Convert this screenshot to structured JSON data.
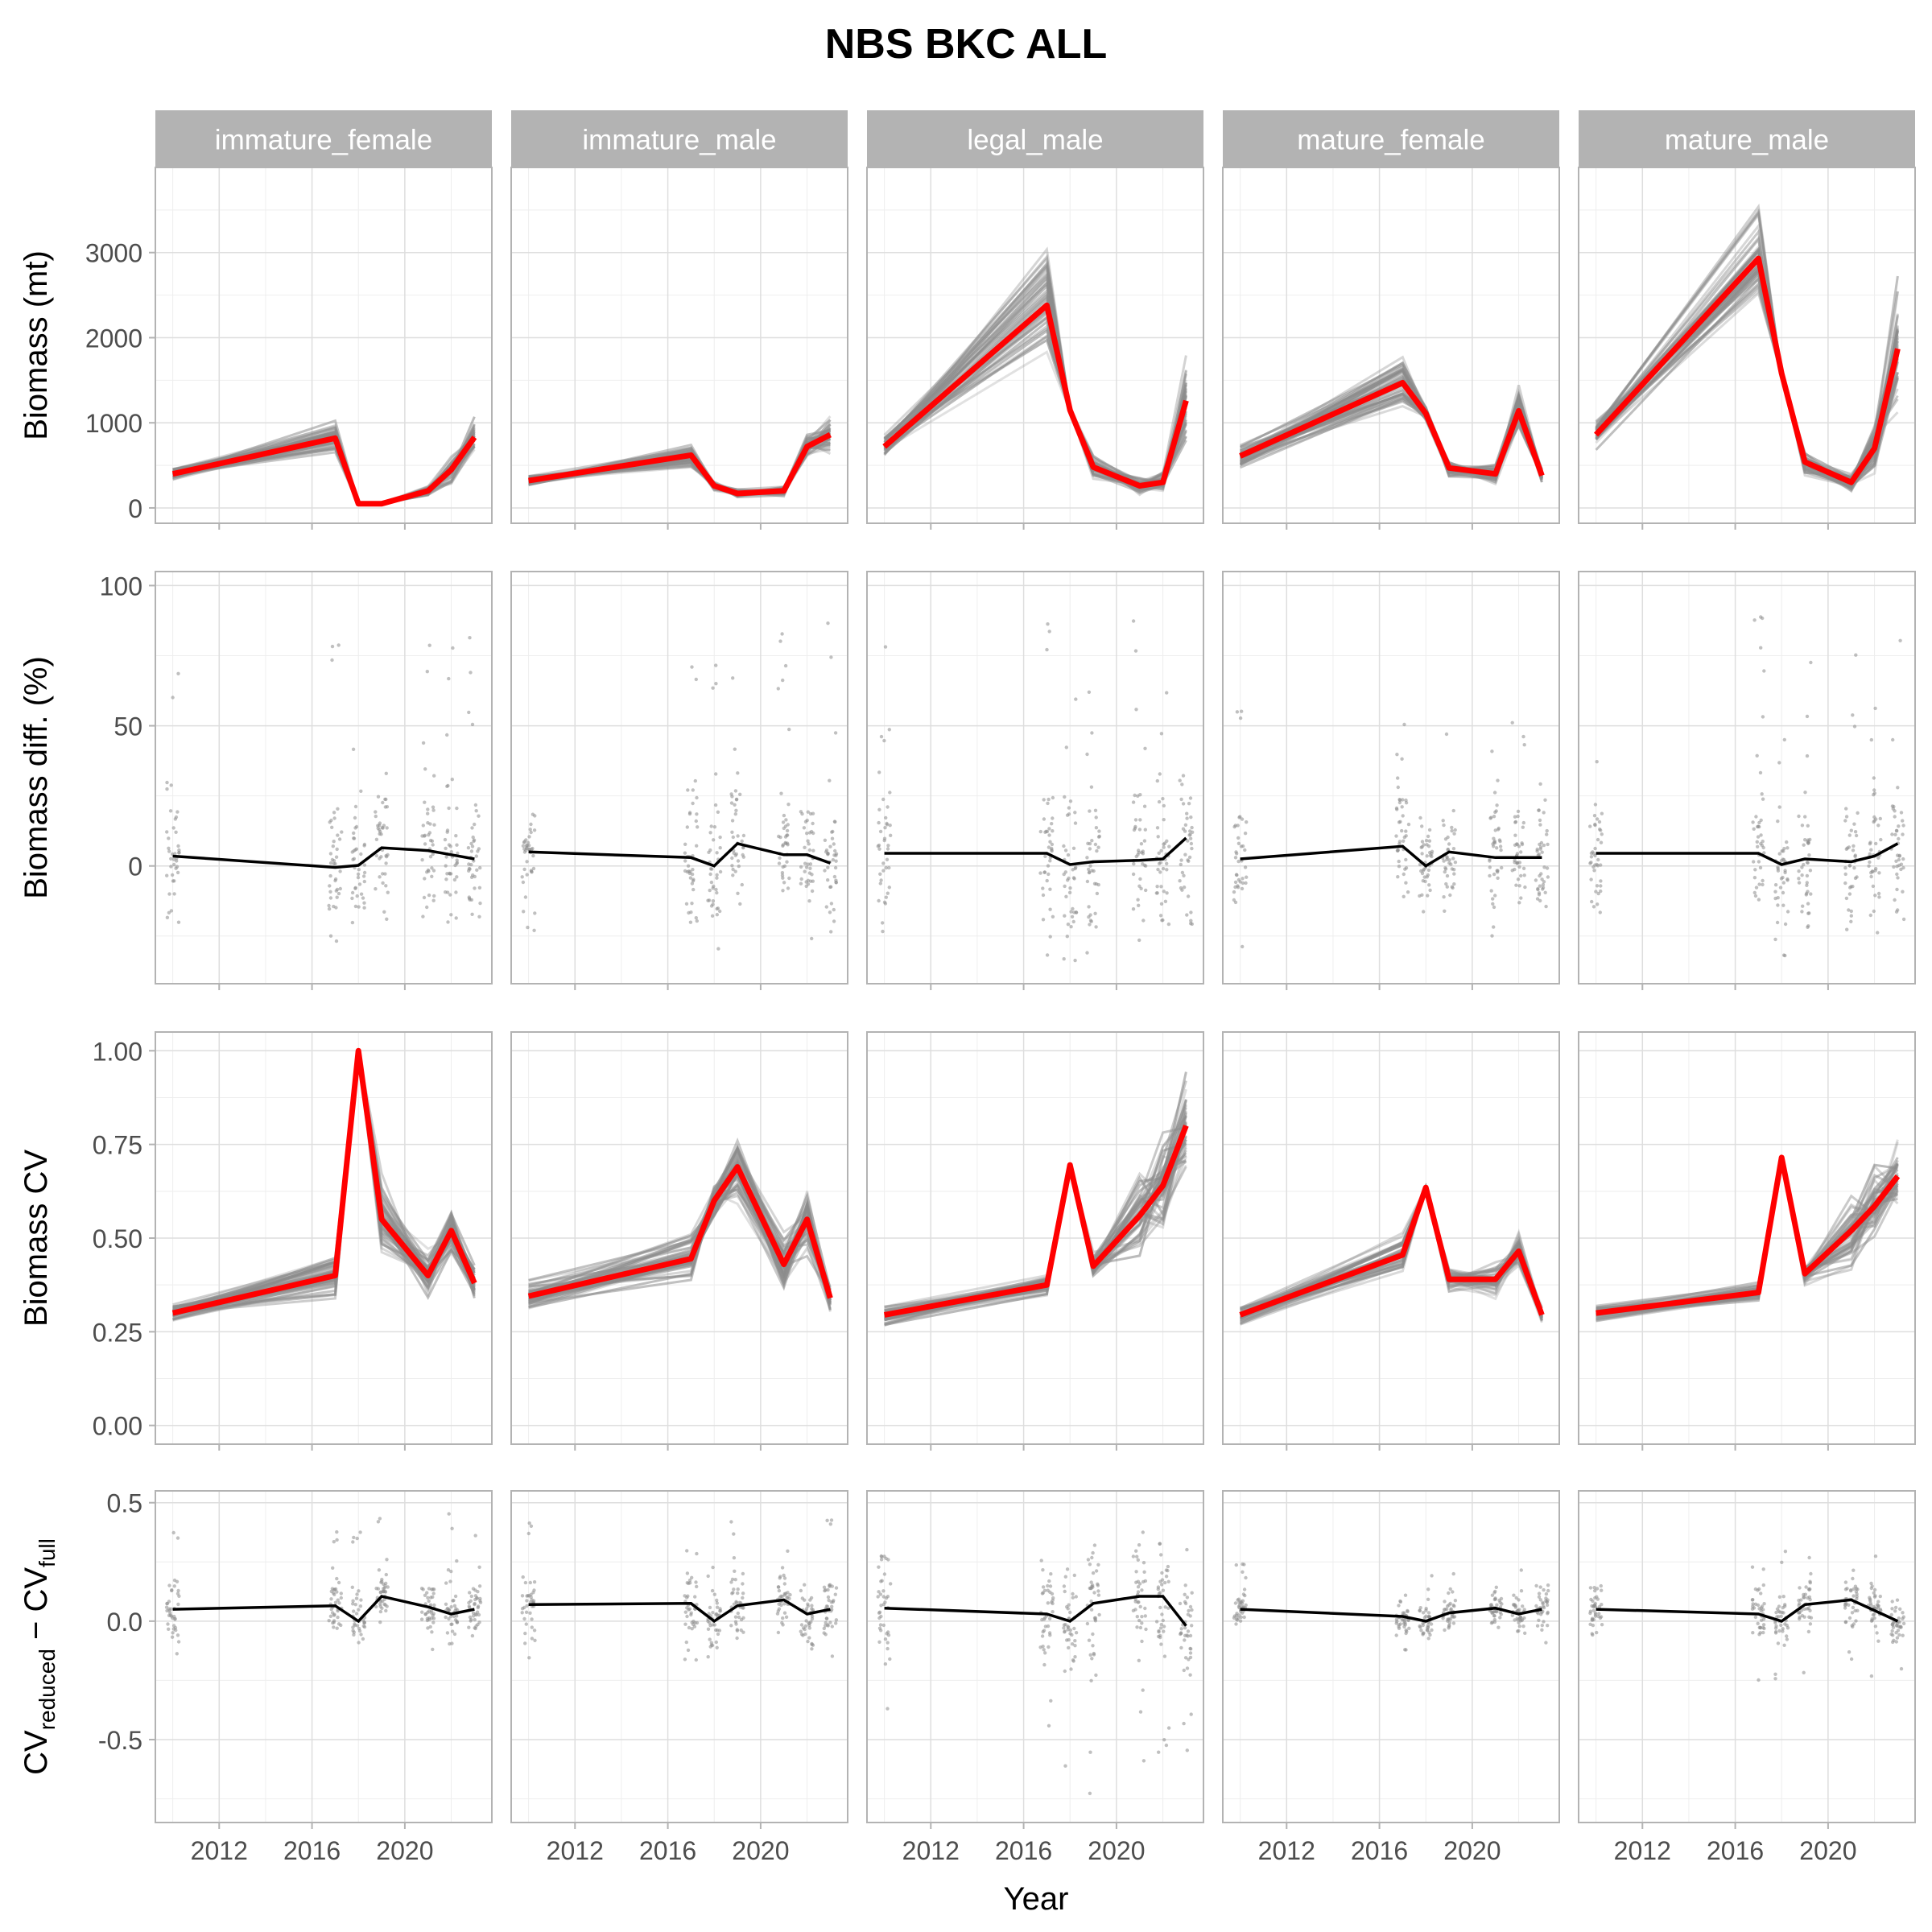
{
  "title": "NBS BKC ALL",
  "xlabel": "Year",
  "colors": {
    "strip_bg": "#B3B3B3",
    "strip_text": "#FFFFFF",
    "panel_border": "#B3B3B3",
    "grid_major": "#DEDEDE",
    "grid_minor": "#EEEEEE",
    "replicate": "#8C8C8C",
    "full_series": "#FF0000",
    "mean_line": "#000000",
    "text": "#000000",
    "tick_text": "#4D4D4D"
  },
  "chart_data": {
    "type": "line",
    "layout": "facet-grid",
    "facets": [
      "immature_female",
      "immature_male",
      "legal_male",
      "mature_female",
      "mature_male"
    ],
    "years": [
      2010,
      2017,
      2018,
      2019,
      2021,
      2022,
      2023
    ],
    "x_ticks": [
      2012,
      2016,
      2020
    ],
    "xlim": [
      2009.25,
      2023.75
    ],
    "grid": true,
    "rows": [
      {
        "key": "biomass",
        "ylabel": "Biomass (mt)",
        "ylim": [
          -180,
          4000
        ],
        "y_ticks": [
          0,
          1000,
          2000,
          3000
        ],
        "y_tick_labels": [
          "0",
          "1000",
          "2000",
          "3000"
        ],
        "marks": "lines",
        "series": [
          {
            "facet": "immature_female",
            "full": [
              400,
              820,
              50,
              50,
              200,
              450,
              830
            ],
            "replicate_spread": [
              0.28,
              0.32,
              0.25,
              0.3,
              0.4,
              0.5,
              0.35
            ]
          },
          {
            "facet": "immature_male",
            "full": [
              320,
              620,
              260,
              170,
              200,
              720,
              860
            ],
            "replicate_spread": [
              0.28,
              0.32,
              0.25,
              0.35,
              0.4,
              0.3,
              0.3
            ]
          },
          {
            "facet": "legal_male",
            "full": [
              720,
              2380,
              1150,
              480,
              260,
              300,
              1260
            ],
            "replicate_spread": [
              0.28,
              0.32,
              0.05,
              0.4,
              0.5,
              0.5,
              0.6
            ]
          },
          {
            "facet": "mature_female",
            "full": [
              610,
              1470,
              1110,
              470,
              400,
              1140,
              380
            ],
            "replicate_spread": [
              0.28,
              0.3,
              0.1,
              0.3,
              0.4,
              0.35,
              0.3
            ]
          },
          {
            "facet": "mature_male",
            "full": [
              860,
              2930,
              1580,
              540,
              300,
              700,
              1870
            ],
            "replicate_spread": [
              0.28,
              0.3,
              0.05,
              0.35,
              0.45,
              0.5,
              0.55
            ]
          }
        ]
      },
      {
        "key": "biomass_diff",
        "ylabel": "Biomass diff. (%)",
        "ylim": [
          -42,
          105
        ],
        "y_ticks": [
          0,
          50,
          100
        ],
        "y_tick_labels": [
          "0",
          "50",
          "100"
        ],
        "marks": "points+mean",
        "series": [
          {
            "facet": "immature_female",
            "mean": [
              3.5,
              -0.5,
              0.2,
              6.5,
              5.5,
              4,
              2.5
            ],
            "point_range": [
              -32,
              85
            ]
          },
          {
            "facet": "immature_male",
            "mean": [
              5,
              3,
              0,
              8,
              4,
              4,
              1
            ],
            "point_range": [
              -32,
              88
            ]
          },
          {
            "facet": "legal_male",
            "mean": [
              4.5,
              4.5,
              0.5,
              1.5,
              2,
              2.5,
              10
            ],
            "point_range": [
              -35,
              100
            ]
          },
          {
            "facet": "mature_female",
            "mean": [
              2.5,
              7,
              0,
              5,
              3,
              3,
              3
            ],
            "point_range": [
              -32,
              63
            ]
          },
          {
            "facet": "mature_male",
            "mean": [
              4.5,
              4.5,
              0.5,
              2.5,
              1.5,
              3.5,
              8
            ],
            "point_range": [
              -35,
              92
            ]
          }
        ]
      },
      {
        "key": "biomass_cv",
        "ylabel": "Biomass CV",
        "ylim": [
          -0.05,
          1.05
        ],
        "y_ticks": [
          0,
          0.25,
          0.5,
          0.75,
          1
        ],
        "y_tick_labels": [
          "0.00",
          "0.25",
          "0.50",
          "0.75",
          "1.00"
        ],
        "marks": "lines",
        "series": [
          {
            "facet": "immature_female",
            "full": [
              0.3,
              0.4,
              1.0,
              0.55,
              0.4,
              0.52,
              0.38
            ],
            "replicate_spread": [
              0.1,
              0.2,
              0.0,
              0.25,
              0.2,
              0.2,
              0.15
            ]
          },
          {
            "facet": "immature_male",
            "full": [
              0.345,
              0.445,
              0.6,
              0.69,
              0.43,
              0.55,
              0.34
            ],
            "replicate_spread": [
              0.15,
              0.2,
              0.1,
              0.2,
              0.25,
              0.2,
              0.15
            ]
          },
          {
            "facet": "legal_male",
            "full": [
              0.295,
              0.375,
              0.695,
              0.425,
              0.56,
              0.64,
              0.8
            ],
            "replicate_spread": [
              0.15,
              0.1,
              0.0,
              0.1,
              0.3,
              0.3,
              0.25
            ]
          },
          {
            "facet": "mature_female",
            "full": [
              0.295,
              0.455,
              0.635,
              0.39,
              0.39,
              0.465,
              0.295
            ],
            "replicate_spread": [
              0.12,
              0.18,
              0.0,
              0.1,
              0.15,
              0.15,
              0.1
            ]
          },
          {
            "facet": "mature_male",
            "full": [
              0.3,
              0.355,
              0.715,
              0.405,
              0.52,
              0.585,
              0.665
            ],
            "replicate_spread": [
              0.1,
              0.1,
              0.0,
              0.1,
              0.25,
              0.25,
              0.2
            ]
          }
        ]
      },
      {
        "key": "cv_diff",
        "ylabel_main": "CV",
        "ylabel_sub1": "reduced",
        "ylabel_minus": " − CV",
        "ylabel_sub2": "full",
        "ylim": [
          -0.85,
          0.55
        ],
        "y_ticks": [
          -0.5,
          0,
          0.5
        ],
        "y_tick_labels": [
          "-0.5",
          "0.0",
          "0.5"
        ],
        "marks": "points+mean",
        "series": [
          {
            "facet": "immature_female",
            "mean": [
              0.05,
              0.065,
              0.0,
              0.105,
              0.06,
              0.03,
              0.05
            ],
            "point_range": [
              -0.15,
              0.46
            ]
          },
          {
            "facet": "immature_male",
            "mean": [
              0.07,
              0.075,
              0.0,
              0.065,
              0.09,
              0.03,
              0.05
            ],
            "point_range": [
              -0.17,
              0.48
            ]
          },
          {
            "facet": "legal_male",
            "mean": [
              0.055,
              0.03,
              0.0,
              0.075,
              0.105,
              0.105,
              -0.02
            ],
            "point_range": [
              -0.82,
              0.43
            ]
          },
          {
            "facet": "mature_female",
            "mean": [
              0.05,
              0.02,
              0.0,
              0.035,
              0.055,
              0.03,
              0.05
            ],
            "point_range": [
              -0.13,
              0.25
            ]
          },
          {
            "facet": "mature_male",
            "mean": [
              0.05,
              0.03,
              0.0,
              0.07,
              0.09,
              0.045,
              0.0
            ],
            "point_range": [
              -0.25,
              0.33
            ]
          }
        ]
      }
    ]
  }
}
